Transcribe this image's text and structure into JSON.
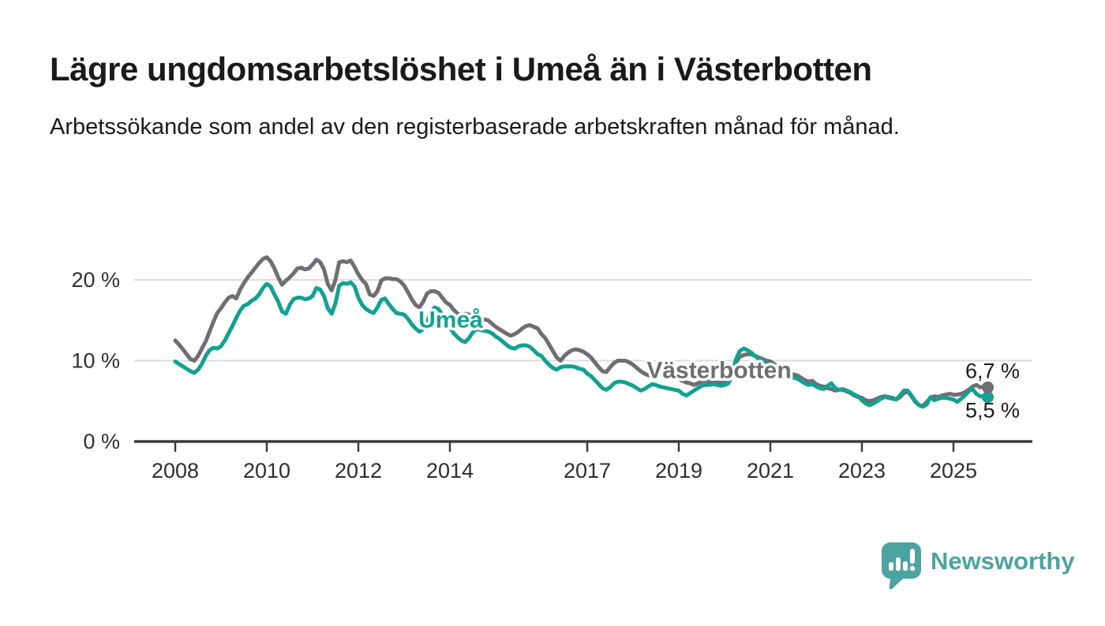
{
  "header": {
    "title": "Lägre ungdomsarbetslöshet i Umeå än i Västerbotten",
    "subtitle": "Arbetssökande som andel av den registerbaserade arbetskraften månad för månad."
  },
  "chart_data": {
    "type": "line",
    "x_frequency": "monthly",
    "x_start": "2008-01",
    "x_end": "2025-10",
    "x_tick_years": [
      2008,
      2010,
      2012,
      2014,
      2017,
      2019,
      2021,
      2023,
      2025
    ],
    "x_tick_labels": [
      "2008",
      "2010",
      "2012",
      "2014",
      "2017",
      "2019",
      "2021",
      "2023",
      "2025"
    ],
    "y_ticks": [
      {
        "value": 0,
        "label": "0 %"
      },
      {
        "value": 10,
        "label": "10 %"
      },
      {
        "value": 20,
        "label": "20 %"
      }
    ],
    "ylim": [
      0,
      23.5
    ],
    "grid": "horizontal",
    "unit": "%",
    "series": [
      {
        "name": "Västerbotten",
        "color": "#6e6e73",
        "last_value": 6.7,
        "last_value_label": "6,7 %",
        "values": [
          12.5,
          12.0,
          11.4,
          10.8,
          10.2,
          10.0,
          10.6,
          11.5,
          12.4,
          13.6,
          14.8,
          15.9,
          16.5,
          17.2,
          17.8,
          18.0,
          17.7,
          18.8,
          19.6,
          20.3,
          20.9,
          21.5,
          22.1,
          22.6,
          22.8,
          22.3,
          21.4,
          20.3,
          19.4,
          19.9,
          20.3,
          20.8,
          21.4,
          21.5,
          21.3,
          21.4,
          21.9,
          22.5,
          22.2,
          21.3,
          19.5,
          18.7,
          20.0,
          22.2,
          22.3,
          22.2,
          22.4,
          21.6,
          20.7,
          20.0,
          19.5,
          18.2,
          18.0,
          18.6,
          19.9,
          20.2,
          20.2,
          20.1,
          20.1,
          19.8,
          19.3,
          18.5,
          17.6,
          16.9,
          16.6,
          17.3,
          18.3,
          18.6,
          18.6,
          18.4,
          17.8,
          17.2,
          16.9,
          16.3,
          15.8,
          15.6,
          15.8,
          15.7,
          15.5,
          15.3,
          15.2,
          15.1,
          15.0,
          14.6,
          14.2,
          13.9,
          13.6,
          13.3,
          13.1,
          13.3,
          13.6,
          14.0,
          14.3,
          14.4,
          14.2,
          14.0,
          13.3,
          12.8,
          12.0,
          11.2,
          10.4,
          10.0,
          10.6,
          11.0,
          11.3,
          11.4,
          11.3,
          11.1,
          10.8,
          10.4,
          9.8,
          9.2,
          8.7,
          8.6,
          9.2,
          9.7,
          10.0,
          10.0,
          10.0,
          9.8,
          9.5,
          9.1,
          8.7,
          8.4,
          8.2,
          8.1,
          8.3,
          8.5,
          8.4,
          8.3,
          8.2,
          8.0,
          7.8,
          7.5,
          7.3,
          7.2,
          7.0,
          7.2,
          7.4,
          7.5,
          7.4,
          7.4,
          7.3,
          7.3,
          7.5,
          7.6,
          8.4,
          9.8,
          10.5,
          10.7,
          10.8,
          10.8,
          10.6,
          10.4,
          10.2,
          10.0,
          9.9,
          9.6,
          9.3,
          9.0,
          8.7,
          8.5,
          8.3,
          8.2,
          7.9,
          7.6,
          7.4,
          7.5,
          7.1,
          6.9,
          6.8,
          6.6,
          6.5,
          6.3,
          6.4,
          6.4,
          6.2,
          6.0,
          5.7,
          5.5,
          5.4,
          5.1,
          5.0,
          5.1,
          5.3,
          5.5,
          5.6,
          5.5,
          5.4,
          5.2,
          5.5,
          6.0,
          6.2,
          5.6,
          4.9,
          4.5,
          4.4,
          4.9,
          5.4,
          5.6,
          5.5,
          5.7,
          5.8,
          5.9,
          5.8,
          5.8,
          5.9,
          6.1,
          6.4,
          6.8,
          7.0,
          6.7,
          6.8,
          6.7
        ]
      },
      {
        "name": "Umeå",
        "color": "#12a192",
        "last_value": 5.5,
        "last_value_label": "5,5 %",
        "values": [
          9.9,
          9.6,
          9.3,
          9.0,
          8.7,
          8.5,
          8.9,
          9.6,
          10.6,
          11.3,
          11.6,
          11.5,
          11.8,
          12.5,
          13.4,
          14.3,
          15.3,
          16.2,
          16.8,
          17.0,
          17.4,
          17.7,
          18.2,
          19.0,
          19.5,
          19.2,
          18.2,
          17.3,
          16.1,
          15.8,
          16.9,
          17.6,
          17.8,
          17.8,
          17.6,
          17.7,
          18.0,
          19.0,
          18.8,
          18.0,
          16.5,
          15.8,
          17.1,
          19.3,
          19.6,
          19.5,
          19.7,
          19.2,
          17.8,
          16.9,
          16.4,
          16.1,
          15.9,
          16.6,
          17.5,
          17.7,
          17.0,
          16.4,
          15.9,
          15.8,
          15.7,
          15.2,
          14.5,
          14.0,
          13.6,
          13.9,
          14.8,
          15.9,
          16.6,
          16.4,
          15.7,
          14.8,
          14.1,
          13.4,
          12.9,
          12.5,
          12.3,
          12.8,
          13.5,
          13.9,
          13.8,
          13.7,
          13.6,
          13.4,
          13.0,
          12.7,
          12.3,
          11.9,
          11.6,
          11.5,
          11.8,
          11.9,
          11.9,
          11.7,
          11.3,
          10.8,
          10.6,
          10.0,
          9.5,
          9.1,
          8.9,
          9.2,
          9.3,
          9.3,
          9.3,
          9.2,
          9.0,
          8.9,
          8.4,
          8.1,
          7.6,
          7.1,
          6.6,
          6.4,
          6.7,
          7.2,
          7.4,
          7.4,
          7.3,
          7.1,
          6.9,
          6.6,
          6.3,
          6.5,
          6.8,
          7.1,
          7.0,
          6.8,
          6.7,
          6.6,
          6.5,
          6.4,
          6.3,
          5.9,
          5.7,
          6.0,
          6.3,
          6.6,
          6.9,
          7.0,
          7.0,
          7.1,
          7.0,
          6.9,
          7.0,
          7.2,
          8.2,
          10.2,
          11.2,
          11.5,
          11.3,
          11.0,
          10.6,
          10.2,
          9.9,
          9.7,
          9.6,
          9.3,
          9.0,
          8.6,
          8.3,
          8.1,
          7.9,
          7.8,
          7.5,
          7.2,
          7.0,
          7.1,
          6.8,
          6.6,
          6.5,
          6.9,
          7.2,
          6.6,
          6.4,
          6.5,
          6.3,
          6.1,
          5.8,
          5.6,
          5.1,
          4.7,
          4.5,
          4.7,
          5.0,
          5.3,
          5.5,
          5.4,
          5.3,
          5.2,
          5.7,
          6.3,
          6.3,
          5.7,
          5.0,
          4.5,
          4.3,
          4.6,
          5.5,
          5.1,
          5.3,
          5.4,
          5.4,
          5.3,
          5.2,
          4.9,
          5.3,
          5.7,
          6.2,
          6.5,
          5.9,
          5.6,
          5.6,
          5.5
        ]
      }
    ]
  },
  "footer": {
    "brand": "Newsworthy"
  },
  "colors": {
    "accent_teal": "#12a192",
    "series_gray": "#6e6e73",
    "logo_teal": "#4ba3a2",
    "grid": "#dcdcdc",
    "axis": "#3a3a3a",
    "text": "#1a1a1a"
  }
}
